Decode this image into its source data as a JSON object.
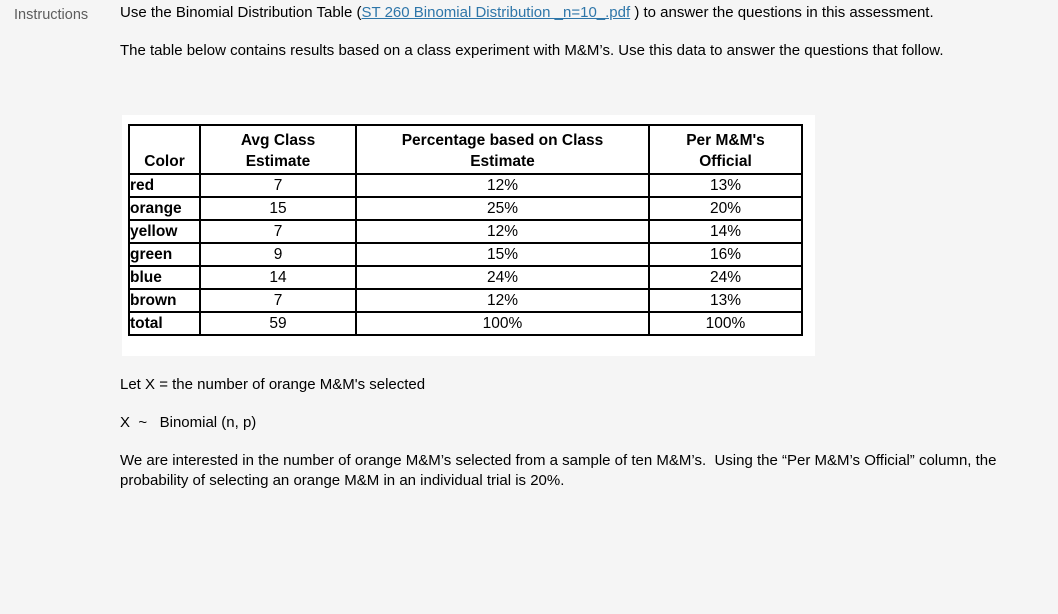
{
  "page": {
    "background_color": "#f5f5f5",
    "link_color": "#2e76a9"
  },
  "sidebar": {
    "label": "Instructions"
  },
  "intro": {
    "before_link": "Use the Binomial Distribution Table (",
    "link_text": "ST 260 Binomial Distribution _n=10_.pdf",
    "after_link": " ) to answer the questions in this assessment."
  },
  "table_intro": "The table below contains results based on a class experiment with M&M’s. Use this data to answer the questions that follow.",
  "mm_table": {
    "headers": [
      {
        "line1": "",
        "line2": "Color"
      },
      {
        "line1": "Avg Class",
        "line2": "Estimate"
      },
      {
        "line1": "Percentage based on Class",
        "line2": "Estimate"
      },
      {
        "line1": "Per M&M's",
        "line2": "Official"
      }
    ],
    "rows": [
      {
        "color": "red",
        "avg_class_estimate": "7",
        "pct_class_estimate": "12%",
        "per_mm_official": "13%"
      },
      {
        "color": "orange",
        "avg_class_estimate": "15",
        "pct_class_estimate": "25%",
        "per_mm_official": "20%"
      },
      {
        "color": "yellow",
        "avg_class_estimate": "7",
        "pct_class_estimate": "12%",
        "per_mm_official": "14%"
      },
      {
        "color": "green",
        "avg_class_estimate": "9",
        "pct_class_estimate": "15%",
        "per_mm_official": "16%"
      },
      {
        "color": "blue",
        "avg_class_estimate": "14",
        "pct_class_estimate": "24%",
        "per_mm_official": "24%"
      },
      {
        "color": "brown",
        "avg_class_estimate": "7",
        "pct_class_estimate": "12%",
        "per_mm_official": "13%"
      },
      {
        "color": "total",
        "avg_class_estimate": "59",
        "pct_class_estimate": "100%",
        "per_mm_official": "100%"
      }
    ]
  },
  "definitions": {
    "let_x": "Let X = the number of orange M&M's selected",
    "distribution": "X  ~   Binomial (n, p)"
  },
  "closing": "We are interested in the number of orange M&M’s selected from a sample of ten M&M’s.  Using the “Per M&M’s Official” column, the probability of selecting an orange M&M in an individual trial is 20%."
}
